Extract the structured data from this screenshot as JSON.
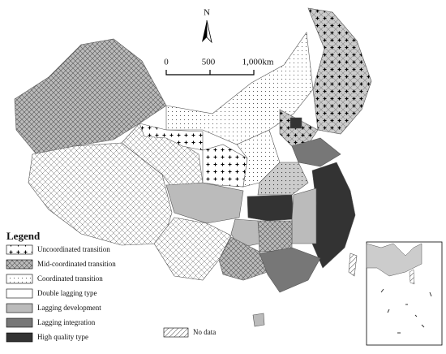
{
  "compass": "N",
  "scale_bar": {
    "ticks": [
      "0",
      "500",
      "1,000km"
    ]
  },
  "legend": {
    "title": "Legend",
    "items": [
      "Uncoordinated transition",
      "Mid-coordinated transition",
      "Coordinated transition",
      "Double lagging type",
      "Lagging development",
      "Lagging integration",
      "High quality type"
    ]
  },
  "no_data": "No data"
}
